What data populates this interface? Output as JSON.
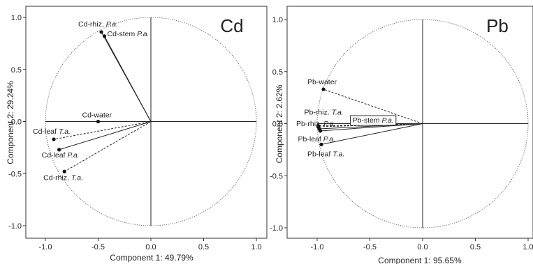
{
  "chart_data": [
    {
      "type": "scatter",
      "panel_label": "Cd",
      "xlabel": "Component 1: 49.79%",
      "ylabel": "Component 2: 29.24%",
      "xlim": [
        -1.1,
        1.1
      ],
      "ylim": [
        -1.1,
        1.1
      ],
      "xticks": [
        "-1.0",
        "-0.5",
        "0.0",
        "0.5",
        "1.0"
      ],
      "yticks": [
        "1.0",
        "0.5",
        "0.0",
        "-0.5",
        "-1.0"
      ],
      "unit_circle": true,
      "points": [
        {
          "label": "Cd-rhiz, ",
          "label_italic": "P.a.",
          "x": -0.47,
          "y": 0.86,
          "line": "solid"
        },
        {
          "label": "Cd-stem ",
          "label_italic": "P.a.",
          "x": -0.44,
          "y": 0.82,
          "line": "solid"
        },
        {
          "label": "Cd-water",
          "label_italic": "",
          "x": -0.5,
          "y": 0.0,
          "line": "dashed"
        },
        {
          "label": "Cd-leaf ",
          "label_italic": "T.a.",
          "x": -0.92,
          "y": -0.17,
          "line": "dashed"
        },
        {
          "label": "Cd-leaf ",
          "label_italic": "P.a.",
          "x": -0.87,
          "y": -0.27,
          "line": "solid"
        },
        {
          "label": "Cd-rhiz. ",
          "label_italic": "T.a.",
          "x": -0.82,
          "y": -0.48,
          "line": "dashed"
        }
      ]
    },
    {
      "type": "scatter",
      "panel_label": "Pb",
      "xlabel": "Component 1: 95.65%",
      "ylabel": "Component 2:  2.62%",
      "xlim": [
        -1.1,
        1.1
      ],
      "ylim": [
        -1.1,
        1.1
      ],
      "xticks": [
        "-1.0",
        "-0.5",
        "0.0",
        "0.5",
        "1.0"
      ],
      "yticks": [
        "1.0",
        "0.5",
        "0.0",
        "-0.5",
        "-1.0"
      ],
      "unit_circle": true,
      "points": [
        {
          "label": "Pb-water",
          "label_italic": "",
          "x": -0.94,
          "y": 0.33,
          "line": "dashed"
        },
        {
          "label": "Pb-rhiz. ",
          "label_italic": "T.a.",
          "x": -0.99,
          "y": -0.02,
          "line": "dashed"
        },
        {
          "label": "Pb-stem ",
          "label_italic": "P.a.",
          "x": -0.99,
          "y": -0.03,
          "line": "dashed",
          "boxed": true
        },
        {
          "label": "Pb-rhiz. ",
          "label_italic": "P.a.",
          "x": -0.98,
          "y": -0.05,
          "line": "solid"
        },
        {
          "label": "Pb-leaf ",
          "label_italic": "P.a.",
          "x": -0.97,
          "y": -0.07,
          "line": "solid"
        },
        {
          "label": "Pb-leaf ",
          "label_italic": "T.a.",
          "x": -0.96,
          "y": -0.2,
          "line": "solid"
        }
      ]
    }
  ]
}
